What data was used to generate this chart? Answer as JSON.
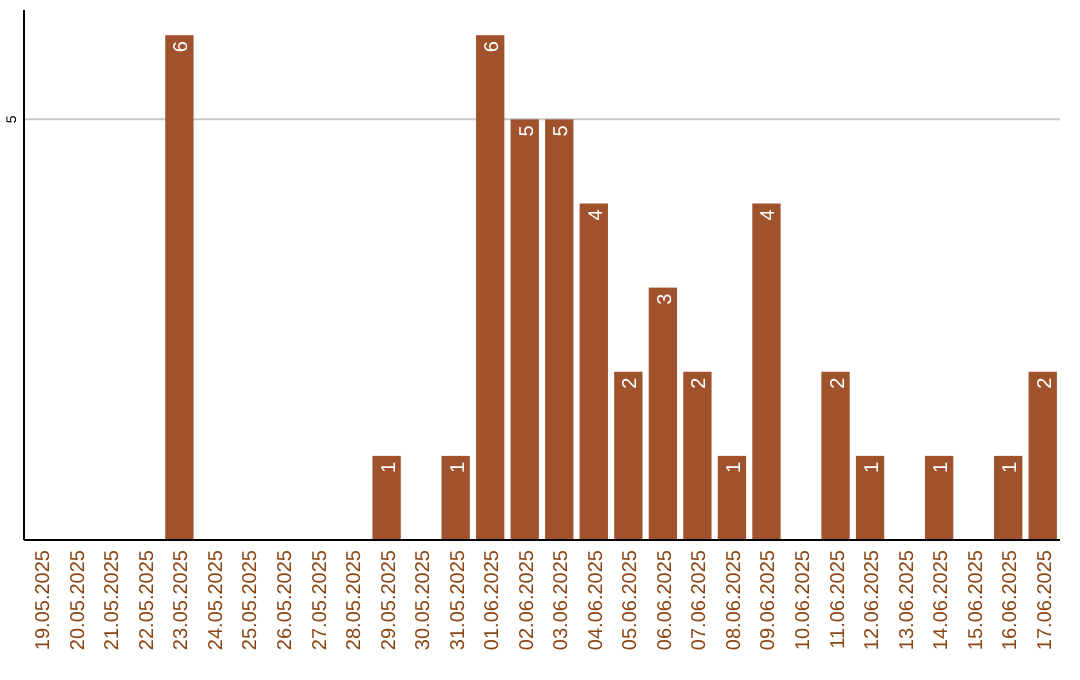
{
  "chart_data": {
    "type": "bar",
    "categories": [
      "19.05.2025",
      "20.05.2025",
      "21.05.2025",
      "22.05.2025",
      "23.05.2025",
      "24.05.2025",
      "25.05.2025",
      "26.05.2025",
      "27.05.2025",
      "28.05.2025",
      "29.05.2025",
      "30.05.2025",
      "31.05.2025",
      "01.06.2025",
      "02.06.2025",
      "03.06.2025",
      "04.06.2025",
      "05.06.2025",
      "06.06.2025",
      "07.06.2025",
      "08.06.2025",
      "09.06.2025",
      "10.06.2025",
      "11.06.2025",
      "12.06.2025",
      "13.06.2025",
      "14.06.2025",
      "15.06.2025",
      "16.06.2025",
      "17.06.2025"
    ],
    "values": [
      0,
      0,
      0,
      0,
      6,
      0,
      0,
      0,
      0,
      0,
      1,
      0,
      1,
      6,
      5,
      5,
      4,
      2,
      3,
      2,
      1,
      4,
      0,
      2,
      1,
      0,
      1,
      0,
      1,
      2
    ],
    "value_labels": [
      null,
      null,
      null,
      null,
      "6",
      null,
      null,
      null,
      null,
      null,
      "1",
      null,
      "1",
      "6",
      "5",
      "5",
      "4",
      "2",
      "3",
      "2",
      "1",
      "4",
      null,
      "2",
      "1",
      null,
      "1",
      null,
      "1",
      "2"
    ],
    "color": "#a0522d",
    "ylim": [
      0,
      6.3
    ],
    "yticks": [
      5
    ],
    "grid": "y"
  }
}
